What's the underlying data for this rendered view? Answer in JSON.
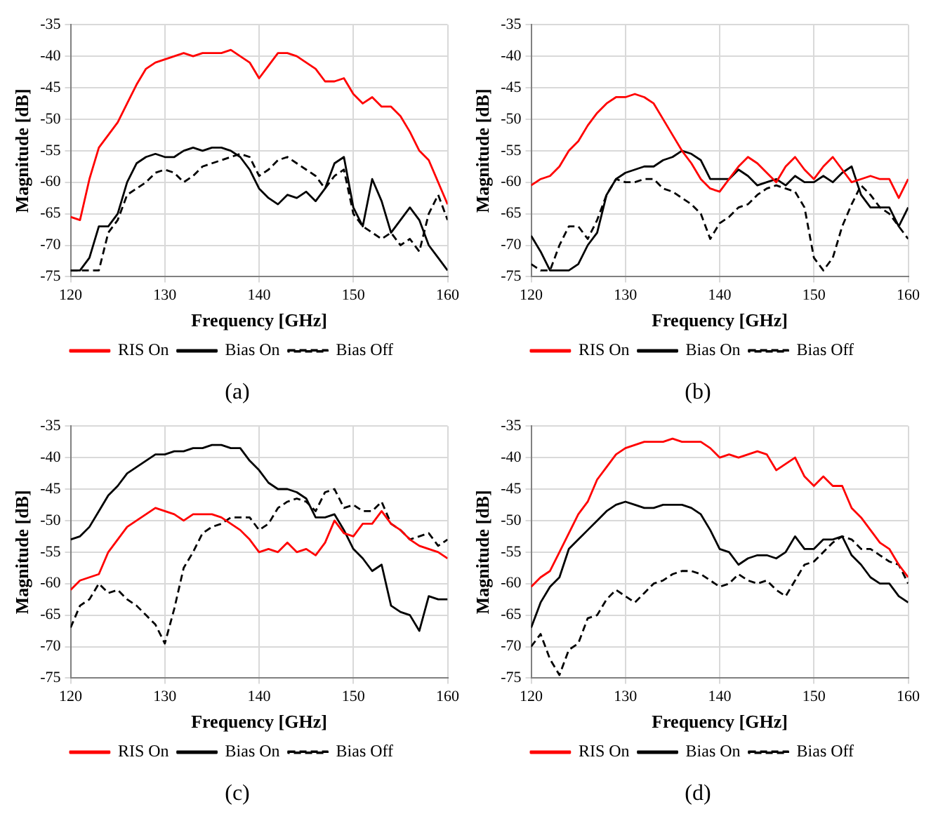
{
  "chart_data": [
    {
      "type": "line",
      "xlabel": "Frequency [GHz]",
      "ylabel": "Magnitude [dB]",
      "annotations": [
        "(a)"
      ],
      "x": [
        120,
        121,
        122,
        123,
        124,
        125,
        126,
        127,
        128,
        129,
        130,
        131,
        132,
        133,
        134,
        135,
        136,
        137,
        138,
        139,
        140,
        141,
        142,
        143,
        144,
        145,
        146,
        147,
        148,
        149,
        150,
        151,
        152,
        153,
        154,
        155,
        156,
        157,
        158,
        159,
        160
      ],
      "series": [
        {
          "name": "RIS On",
          "color": "#ff0000",
          "line_style": "solid",
          "values": [
            -65.5,
            -66,
            -59.5,
            -54.5,
            -52.5,
            -50.5,
            -47.5,
            -44.5,
            -42,
            -41,
            -40.5,
            -40,
            -39.5,
            -40,
            -39.5,
            -39.5,
            -39.5,
            -39,
            -40,
            -41,
            -43.5,
            -41.5,
            -39.5,
            -39.5,
            -40,
            -41,
            -42,
            -44,
            -44,
            -43.5,
            -46,
            -47.5,
            -46.5,
            -48,
            -48,
            -49.5,
            -52,
            -55,
            -56.5,
            -60,
            -63.5
          ]
        },
        {
          "name": "Bias On",
          "color": "#000000",
          "line_style": "solid",
          "values": [
            -74,
            -74,
            -72,
            -67,
            -67,
            -65,
            -60,
            -57,
            -56,
            -55.5,
            -56,
            -56,
            -55,
            -54.5,
            -55,
            -54.5,
            -54.5,
            -55,
            -56,
            -58,
            -61,
            -62.5,
            -63.5,
            -62,
            -62.5,
            -61.5,
            -63,
            -61,
            -57,
            -56,
            -64,
            -67,
            -59.5,
            -63,
            -68,
            -66,
            -64,
            -66,
            -70,
            -72,
            -74
          ]
        },
        {
          "name": "Bias Off",
          "color": "#000000",
          "line_style": "dashed",
          "values": [
            -74,
            -74,
            -74,
            -74,
            -68,
            -66,
            -62,
            -61,
            -60,
            -58.5,
            -58,
            -58.5,
            -60,
            -59,
            -57.5,
            -57,
            -56.5,
            -56,
            -55.5,
            -56,
            -59,
            -58,
            -56.5,
            -56,
            -57,
            -58,
            -59,
            -61,
            -59,
            -58,
            -65,
            -67,
            -68,
            -69,
            -68,
            -70,
            -69,
            -71,
            -65,
            -62,
            -66
          ]
        }
      ],
      "xlim": [
        120,
        160
      ],
      "ylim": [
        -75,
        -35
      ],
      "xticks": [
        120,
        130,
        140,
        150,
        160
      ],
      "yticks": [
        -75,
        -70,
        -65,
        -60,
        -55,
        -50,
        -45,
        -40,
        -35
      ],
      "grid": true,
      "legend": "bottom",
      "marker": "none"
    },
    {
      "type": "line",
      "xlabel": "Frequency [GHz]",
      "ylabel": "Magnitude [dB]",
      "annotations": [
        "(b)"
      ],
      "x": [
        120,
        121,
        122,
        123,
        124,
        125,
        126,
        127,
        128,
        129,
        130,
        131,
        132,
        133,
        134,
        135,
        136,
        137,
        138,
        139,
        140,
        141,
        142,
        143,
        144,
        145,
        146,
        147,
        148,
        149,
        150,
        151,
        152,
        153,
        154,
        155,
        156,
        157,
        158,
        159,
        160
      ],
      "series": [
        {
          "name": "RIS On",
          "color": "#ff0000",
          "line_style": "solid",
          "values": [
            -60.5,
            -59.5,
            -59,
            -57.5,
            -55,
            -53.5,
            -51,
            -49,
            -47.5,
            -46.5,
            -46.5,
            -46,
            -46.5,
            -47.5,
            -50,
            -52.5,
            -55,
            -57,
            -59.5,
            -61,
            -61.5,
            -59.5,
            -57.5,
            -56,
            -57,
            -58.5,
            -60,
            -57.5,
            -56,
            -58,
            -59.5,
            -57.5,
            -56,
            -58,
            -60,
            -59.5,
            -59,
            -59.5,
            -59.5,
            -62.5,
            -59.5
          ]
        },
        {
          "name": "Bias On",
          "color": "#000000",
          "line_style": "solid",
          "values": [
            -68.5,
            -71,
            -74,
            -74,
            -74,
            -73,
            -70,
            -68,
            -62,
            -59.5,
            -58.5,
            -58,
            -57.5,
            -57.5,
            -56.5,
            -56,
            -55,
            -55.5,
            -56.5,
            -59.5,
            -59.5,
            -59.5,
            -58,
            -59,
            -60.5,
            -60,
            -59.5,
            -60.5,
            -59,
            -60,
            -60,
            -59,
            -60,
            -58.5,
            -57.5,
            -62,
            -64,
            -64,
            -64,
            -67,
            -64
          ]
        },
        {
          "name": "Bias Off",
          "color": "#000000",
          "line_style": "dashed",
          "values": [
            -73,
            -74,
            -74,
            -70,
            -67,
            -67,
            -69,
            -66,
            -62,
            -59.5,
            -60,
            -60,
            -59.5,
            -59.5,
            -61,
            -61.5,
            -62.5,
            -63.5,
            -65,
            -69,
            -66.5,
            -65.5,
            -64,
            -63.5,
            -62,
            -61,
            -60.5,
            -61,
            -61.5,
            -64,
            -72,
            -74,
            -72,
            -67,
            -63.5,
            -60.5,
            -62,
            -64,
            -65,
            -67,
            -69
          ]
        }
      ],
      "xlim": [
        120,
        160
      ],
      "ylim": [
        -75,
        -35
      ],
      "xticks": [
        120,
        130,
        140,
        150,
        160
      ],
      "yticks": [
        -75,
        -70,
        -65,
        -60,
        -55,
        -50,
        -45,
        -40,
        -35
      ],
      "grid": true,
      "legend": "bottom",
      "marker": "none"
    },
    {
      "type": "line",
      "xlabel": "Frequency [GHz]",
      "ylabel": "Magnitude [dB]",
      "annotations": [
        "(c)"
      ],
      "x": [
        120,
        121,
        122,
        123,
        124,
        125,
        126,
        127,
        128,
        129,
        130,
        131,
        132,
        133,
        134,
        135,
        136,
        137,
        138,
        139,
        140,
        141,
        142,
        143,
        144,
        145,
        146,
        147,
        148,
        149,
        150,
        151,
        152,
        153,
        154,
        155,
        156,
        157,
        158,
        159,
        160
      ],
      "series": [
        {
          "name": "RIS On",
          "color": "#ff0000",
          "line_style": "solid",
          "values": [
            -61,
            -59.5,
            -59,
            -58.5,
            -55,
            -53,
            -51,
            -50,
            -49,
            -48,
            -48.5,
            -49,
            -50,
            -49,
            -49,
            -49,
            -49.5,
            -50.5,
            -51.5,
            -53,
            -55,
            -54.5,
            -55,
            -53.5,
            -55,
            -54.5,
            -55.5,
            -53.5,
            -50,
            -52,
            -52.5,
            -50.5,
            -50.5,
            -48.5,
            -50.5,
            -51.5,
            -53,
            -54,
            -54.5,
            -55,
            -56
          ]
        },
        {
          "name": "Bias On",
          "color": "#000000",
          "line_style": "solid",
          "values": [
            -53,
            -52.5,
            -51,
            -48.5,
            -46,
            -44.5,
            -42.5,
            -41.5,
            -40.5,
            -39.5,
            -39.5,
            -39,
            -39,
            -38.5,
            -38.5,
            -38,
            -38,
            -38.5,
            -38.5,
            -40.5,
            -42,
            -44,
            -45,
            -45,
            -45.5,
            -46.5,
            -49.5,
            -49.5,
            -49,
            -51.5,
            -54.5,
            -56,
            -58,
            -57,
            -63.5,
            -64.5,
            -65,
            -67.5,
            -62,
            -62.5,
            -62.5
          ]
        },
        {
          "name": "Bias Off",
          "color": "#000000",
          "line_style": "dashed",
          "values": [
            -67,
            -63.5,
            -62.5,
            -60,
            -61.5,
            -61,
            -62.5,
            -63.5,
            -65,
            -66.5,
            -69.5,
            -64,
            -57.5,
            -55,
            -52,
            -51,
            -50.5,
            -49.5,
            -49.5,
            -49.5,
            -51.5,
            -50.5,
            -48,
            -47,
            -46.5,
            -47,
            -48.5,
            -45.5,
            -45,
            -48,
            -47.5,
            -48.5,
            -48.5,
            -47,
            -50.5,
            -51.5,
            -53,
            -52.5,
            -52,
            -54,
            -53
          ]
        }
      ],
      "xlim": [
        120,
        160
      ],
      "ylim": [
        -75,
        -35
      ],
      "xticks": [
        120,
        130,
        140,
        150,
        160
      ],
      "yticks": [
        -75,
        -70,
        -65,
        -60,
        -55,
        -50,
        -45,
        -40,
        -35
      ],
      "grid": true,
      "legend": "bottom",
      "marker": "none"
    },
    {
      "type": "line",
      "xlabel": "Frequency [GHz]",
      "ylabel": "Magnitude [dB]",
      "annotations": [
        "(d)"
      ],
      "x": [
        120,
        121,
        122,
        123,
        124,
        125,
        126,
        127,
        128,
        129,
        130,
        131,
        132,
        133,
        134,
        135,
        136,
        137,
        138,
        139,
        140,
        141,
        142,
        143,
        144,
        145,
        146,
        147,
        148,
        149,
        150,
        151,
        152,
        153,
        154,
        155,
        156,
        157,
        158,
        159,
        160
      ],
      "series": [
        {
          "name": "RIS On",
          "color": "#ff0000",
          "line_style": "solid",
          "values": [
            -60.5,
            -59,
            -58,
            -55,
            -52,
            -49,
            -47,
            -43.5,
            -41.5,
            -39.5,
            -38.5,
            -38,
            -37.5,
            -37.5,
            -37.5,
            -37,
            -37.5,
            -37.5,
            -37.5,
            -38.5,
            -40,
            -39.5,
            -40,
            -39.5,
            -39,
            -39.5,
            -42,
            -41,
            -40,
            -43,
            -44.5,
            -43,
            -44.5,
            -44.5,
            -48,
            -49.5,
            -51.5,
            -53.5,
            -54.5,
            -57,
            -59
          ]
        },
        {
          "name": "Bias On",
          "color": "#000000",
          "line_style": "solid",
          "values": [
            -67,
            -63,
            -60.5,
            -59,
            -54.5,
            -53,
            -51.5,
            -50,
            -48.5,
            -47.5,
            -47,
            -47.5,
            -48,
            -48,
            -47.5,
            -47.5,
            -47.5,
            -48,
            -49,
            -51.5,
            -54.5,
            -55,
            -57,
            -56,
            -55.5,
            -55.5,
            -56,
            -55,
            -52.5,
            -54.5,
            -54.5,
            -53,
            -53,
            -52.5,
            -55.5,
            -57,
            -59,
            -60,
            -60,
            -62,
            -63
          ]
        },
        {
          "name": "Bias Off",
          "color": "#000000",
          "line_style": "dashed",
          "values": [
            -70,
            -68,
            -72,
            -74.5,
            -70.5,
            -69.5,
            -65.5,
            -65,
            -62.5,
            -61,
            -62,
            -63,
            -61.5,
            -60,
            -59.5,
            -58.5,
            -58,
            -58,
            -58.5,
            -59.5,
            -60.5,
            -60,
            -58.5,
            -59.5,
            -60,
            -59.5,
            -61,
            -62,
            -59.5,
            -57,
            -56.5,
            -55,
            -53.5,
            -52.5,
            -53,
            -54.5,
            -54.5,
            -55.5,
            -56.5,
            -57,
            -60
          ]
        }
      ],
      "xlim": [
        120,
        160
      ],
      "ylim": [
        -75,
        -35
      ],
      "xticks": [
        120,
        130,
        140,
        150,
        160
      ],
      "yticks": [
        -75,
        -70,
        -65,
        -60,
        -55,
        -50,
        -45,
        -40,
        -35
      ],
      "grid": true,
      "legend": "bottom",
      "marker": "none"
    }
  ]
}
